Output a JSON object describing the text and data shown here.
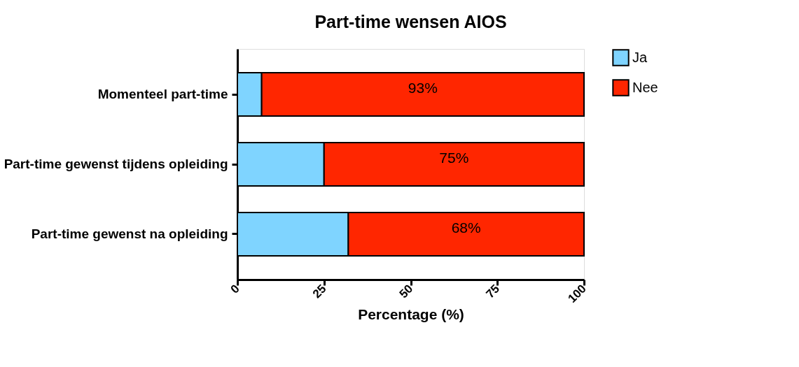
{
  "chart_data": {
    "type": "bar",
    "title": "Part-time wensen AIOS",
    "xlabel": "Percentage (%)",
    "orientation": "horizontal",
    "stacked": true,
    "legend": "top right",
    "grid": false,
    "categories": [
      "Momenteel part-time",
      "Part-time gewenst tijdens opleiding",
      "Part-time gewenst na opleiding"
    ],
    "xlim": [
      0,
      100
    ],
    "xticks": [
      0,
      25,
      50,
      75,
      100
    ],
    "series": [
      {
        "name": "Ja",
        "color": "#7fd4ff",
        "values": [
          7,
          25,
          32
        ]
      },
      {
        "name": "Nee",
        "color": "#ff2600",
        "values": [
          93,
          75,
          68
        ],
        "value_labels": [
          "93%",
          "75%",
          "68%"
        ]
      }
    ]
  }
}
